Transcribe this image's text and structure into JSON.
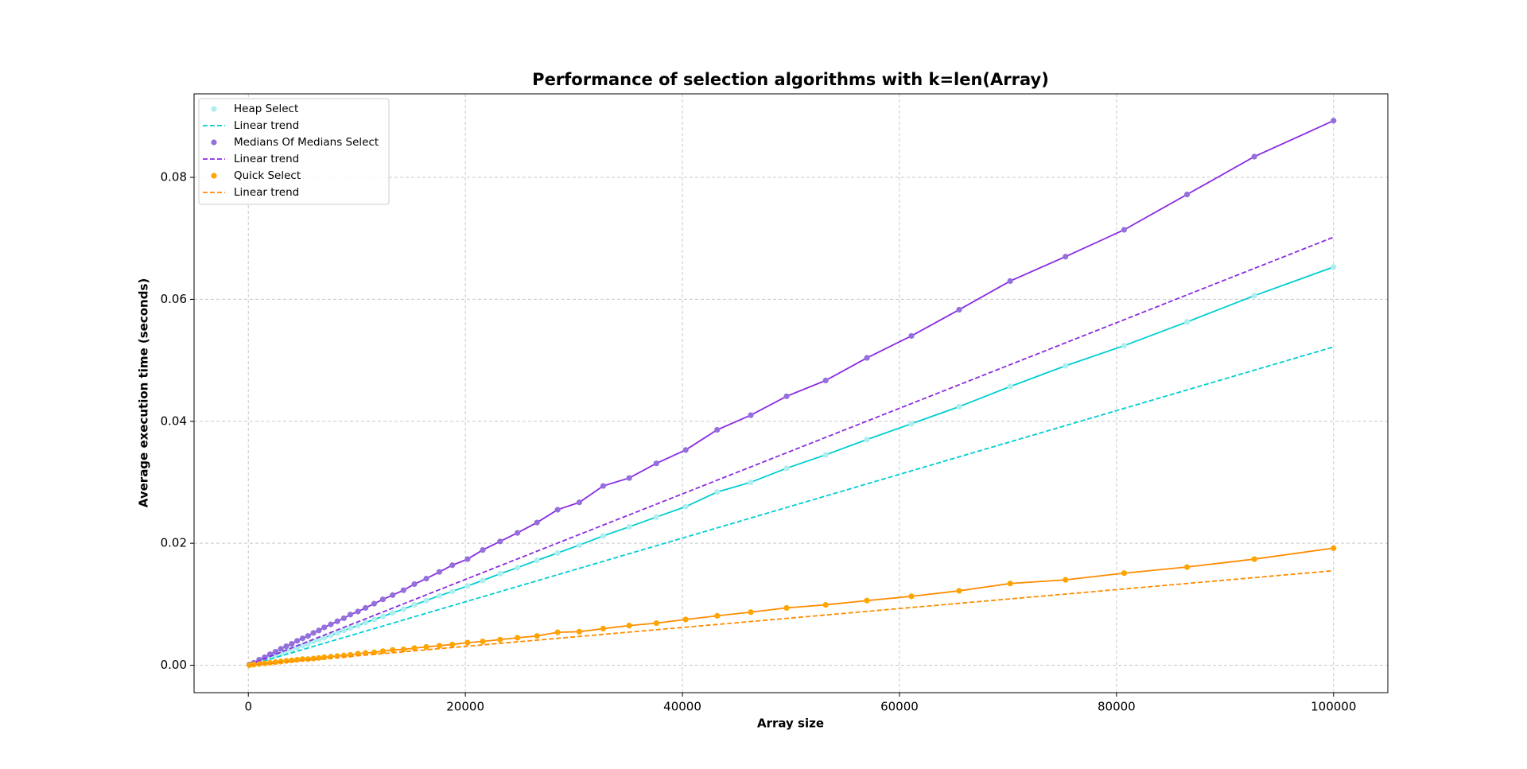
{
  "chart_data": {
    "type": "line",
    "title": "Performance of selection algorithms with k=len(Array)",
    "xlabel": "Array size",
    "ylabel": "Average execution time (seconds)",
    "x": [
      100,
      500,
      1000,
      1500,
      2000,
      2500,
      3000,
      3500,
      4000,
      4500,
      5000,
      5500,
      6000,
      6500,
      7000,
      7600,
      8200,
      8800,
      9400,
      10100,
      10800,
      11600,
      12400,
      13300,
      14300,
      15300,
      16400,
      17600,
      18800,
      20200,
      21600,
      23200,
      24800,
      26600,
      28500,
      30500,
      32700,
      35100,
      37600,
      40300,
      43200,
      46300,
      49600,
      53200,
      57000,
      61100,
      65500,
      70200,
      75300,
      80700,
      86500,
      92700,
      100000
    ],
    "series": [
      {
        "name": "Heap Select",
        "color": "#afeeee",
        "line_color": "#00ced1",
        "marker": true,
        "values": [
          0.0001,
          0.0003,
          0.0006,
          0.001,
          0.0013,
          0.0016,
          0.0019,
          0.0023,
          0.0026,
          0.0029,
          0.0032,
          0.0035,
          0.0039,
          0.0042,
          0.0045,
          0.0049,
          0.0053,
          0.0057,
          0.0061,
          0.0065,
          0.007,
          0.0075,
          0.008,
          0.0086,
          0.0092,
          0.0099,
          0.0106,
          0.0114,
          0.0121,
          0.013,
          0.0139,
          0.015,
          0.016,
          0.0172,
          0.0184,
          0.0197,
          0.0212,
          0.0227,
          0.0243,
          0.026,
          0.0284,
          0.03,
          0.0323,
          0.0345,
          0.037,
          0.0396,
          0.0424,
          0.0457,
          0.0491,
          0.0524,
          0.0563,
          0.0606,
          0.0653
        ]
      },
      {
        "name": "Linear trend",
        "color": "#00ced1",
        "style": "dashed",
        "x": [
          100,
          100000
        ],
        "values": [
          0.0,
          0.0522
        ]
      },
      {
        "name": "Medians Of Medians Select",
        "color": "#9370db",
        "line_color": "#8a2be2",
        "marker": true,
        "values": [
          0.0001,
          0.0004,
          0.0009,
          0.0013,
          0.0018,
          0.0022,
          0.0027,
          0.0031,
          0.0035,
          0.004,
          0.0044,
          0.0048,
          0.0053,
          0.0057,
          0.0062,
          0.0067,
          0.0072,
          0.0077,
          0.0083,
          0.0088,
          0.0094,
          0.0101,
          0.0108,
          0.0115,
          0.0123,
          0.0133,
          0.0142,
          0.0153,
          0.0164,
          0.0174,
          0.0189,
          0.0203,
          0.0217,
          0.0234,
          0.0255,
          0.0267,
          0.0294,
          0.0307,
          0.0331,
          0.0353,
          0.0386,
          0.041,
          0.0441,
          0.0467,
          0.0504,
          0.054,
          0.0583,
          0.063,
          0.067,
          0.0714,
          0.0772,
          0.0834,
          0.0893
        ]
      },
      {
        "name": "Linear trend",
        "color": "#8a2be2",
        "style": "dashed",
        "x": [
          100,
          100000
        ],
        "values": [
          0.0001,
          0.0702
        ]
      },
      {
        "name": "Quick Select",
        "color": "#ffa500",
        "line_color": "#ff8c00",
        "marker": true,
        "values": [
          0.0,
          0.0001,
          0.0002,
          0.0003,
          0.0004,
          0.0005,
          0.0006,
          0.0007,
          0.0008,
          0.0009,
          0.001,
          0.001,
          0.0011,
          0.0012,
          0.0013,
          0.0014,
          0.0015,
          0.0016,
          0.0017,
          0.0019,
          0.002,
          0.0021,
          0.0023,
          0.0025,
          0.0026,
          0.0028,
          0.003,
          0.0032,
          0.0034,
          0.0037,
          0.0039,
          0.0042,
          0.0045,
          0.0048,
          0.0054,
          0.0055,
          0.006,
          0.0065,
          0.0069,
          0.0075,
          0.0081,
          0.0087,
          0.0094,
          0.0099,
          0.0106,
          0.0113,
          0.0122,
          0.0134,
          0.014,
          0.0151,
          0.0161,
          0.0174,
          0.0192
        ]
      },
      {
        "name": "Linear trend",
        "color": "#ff8c00",
        "style": "dashed",
        "x": [
          100,
          100000
        ],
        "values": [
          0.0,
          0.0155
        ]
      }
    ],
    "xlim": [
      -5000,
      105000
    ],
    "xticks": [
      0,
      20000,
      40000,
      60000,
      80000,
      100000
    ],
    "ylim": [
      -0.0045,
      0.0937
    ],
    "yticks": [
      {
        "value": 0,
        "label": "0.00"
      },
      {
        "value": 0.02,
        "label": "0.02"
      },
      {
        "value": 0.04,
        "label": "0.04"
      },
      {
        "value": 0.06,
        "label": "0.06"
      },
      {
        "value": 0.08,
        "label": "0.08"
      }
    ],
    "grid": true,
    "legend": "upper left"
  }
}
